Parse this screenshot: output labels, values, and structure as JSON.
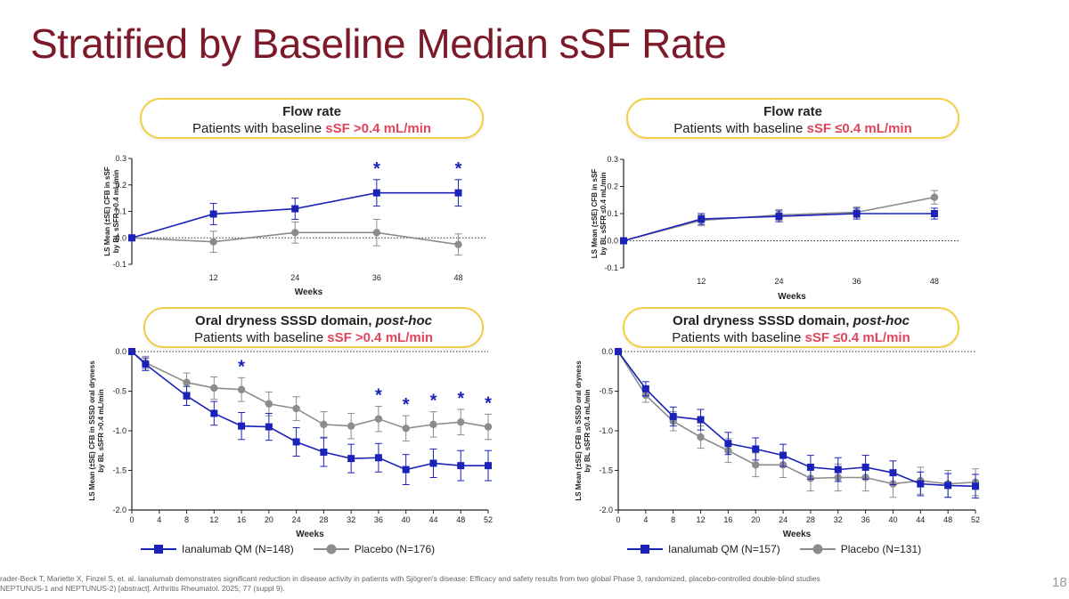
{
  "slide": {
    "title": "Stratified by Baseline Median sSF Rate",
    "page_number": "18",
    "footnote_line1": "rader-Beck T, Mariette X, Finzel S, et. al. Ianalumab demonstrates significant reduction in disease activity in patients with Sjögren's disease: Efficacy and safety results from two global Phase 3, randomized, placebo-controlled double-blind studies",
    "footnote_line2": "NEPTUNUS-1 and NEPTUNUS-2) [abstract]. Arthritis Rheumatol. 2025; 77 (suppl 9)."
  },
  "colors": {
    "title": "#7d1a2a",
    "ianalumab": "#1a22b8",
    "placebo": "#8c8c8c",
    "highlight": "#e0455b",
    "pill_border": "#f2cf45"
  },
  "pills": {
    "top_left": {
      "line1": "Flow rate",
      "prefix": "Patients with baseline ",
      "highlight": "sSF >0.4 mL/min"
    },
    "top_right": {
      "line1": "Flow rate",
      "prefix": "Patients with baseline ",
      "highlight": "sSF ≤0.4 mL/min"
    },
    "bottom_left": {
      "line1a": "Oral dryness SSSD domain, ",
      "line1b": "post-hoc",
      "prefix": "Patients with baseline ",
      "highlight": "sSF >0.4 mL/min"
    },
    "bottom_right": {
      "line1a": "Oral dryness SSSD domain, ",
      "line1b": "post-hoc",
      "prefix": "Patients with baseline ",
      "highlight": "sSF ≤0.4 mL/min"
    }
  },
  "legends": {
    "left": {
      "ianalumab": "Ianalumab QM (N=148)",
      "placebo": "Placebo (N=176)"
    },
    "right": {
      "ianalumab": "Ianalumab QM (N=157)",
      "placebo": "Placebo (N=131)"
    }
  },
  "chart_data": [
    {
      "type": "line",
      "id": "flow-high",
      "title": "Flow rate — Patients with baseline sSF >0.4 mL/min",
      "xlabel": "Weeks",
      "ylabel": [
        "LS Mean (±SE) CFB in sSF",
        "by BL sSFR >0.4 mL/min"
      ],
      "xlim": [
        0,
        52
      ],
      "ylim": [
        -0.1,
        0.3
      ],
      "xticks": [
        12,
        24,
        36,
        48
      ],
      "yticks": [
        -0.1,
        0.0,
        0.1,
        0.2,
        0.3
      ],
      "ytick_labels": [
        "-0.1",
        "0.0",
        "0.1",
        "0.2",
        "0.3"
      ],
      "baseline": 0,
      "series": [
        {
          "name": "Ianalumab QM",
          "x": [
            0,
            12,
            24,
            36,
            48
          ],
          "values": [
            0,
            0.09,
            0.11,
            0.17,
            0.17
          ],
          "err": [
            0,
            0.04,
            0.04,
            0.05,
            0.05
          ]
        },
        {
          "name": "Placebo",
          "x": [
            0,
            12,
            24,
            36,
            48
          ],
          "values": [
            0,
            -0.015,
            0.02,
            0.02,
            -0.025
          ],
          "err": [
            0,
            0.04,
            0.04,
            0.05,
            0.04
          ]
        }
      ],
      "stars": [
        36,
        48
      ],
      "star_label": "*"
    },
    {
      "type": "line",
      "id": "flow-low",
      "title": "Flow rate — Patients with baseline sSF ≤0.4 mL/min",
      "xlabel": "Weeks",
      "ylabel": [
        "LS Mean (±SE) CFB in sSF",
        "by BL sSFR ≤0.4 mL/min"
      ],
      "xlim": [
        0,
        52
      ],
      "ylim": [
        -0.1,
        0.3
      ],
      "xticks": [
        12,
        24,
        36,
        48
      ],
      "yticks": [
        -0.1,
        0.0,
        0.1,
        0.2,
        0.3
      ],
      "ytick_labels": [
        "-0.1",
        "0.0",
        "0.1",
        "0.2",
        "0.3"
      ],
      "baseline": 0,
      "series": [
        {
          "name": "Ianalumab QM",
          "x": [
            0,
            12,
            24,
            36,
            48
          ],
          "values": [
            0,
            0.08,
            0.09,
            0.1,
            0.1
          ],
          "err": [
            0,
            0.02,
            0.02,
            0.02,
            0.02
          ]
        },
        {
          "name": "Placebo",
          "x": [
            0,
            12,
            24,
            36,
            48
          ],
          "values": [
            0,
            0.075,
            0.095,
            0.105,
            0.16
          ],
          "err": [
            0,
            0.02,
            0.02,
            0.02,
            0.025
          ]
        }
      ],
      "stars": [],
      "star_label": "*"
    },
    {
      "type": "line",
      "id": "dryness-high",
      "title": "Oral dryness SSSD domain, post-hoc — Patients with baseline sSF >0.4 mL/min",
      "xlabel": "Weeks",
      "ylabel": [
        "LS Mean (±SE) CFB in SSSD oral dryness",
        "by BL sSFR >0.4 mL/min"
      ],
      "xlim": [
        0,
        52
      ],
      "ylim": [
        -2.0,
        0.0
      ],
      "xticks": [
        0,
        4,
        8,
        12,
        16,
        20,
        24,
        28,
        32,
        36,
        40,
        44,
        48,
        52
      ],
      "yticks": [
        -2.0,
        -1.5,
        -1.0,
        -0.5,
        0.0
      ],
      "ytick_labels": [
        "-2.0",
        "-1.5",
        "-1.0",
        "-0.5",
        "0.0"
      ],
      "baseline": 0,
      "series": [
        {
          "name": "Ianalumab QM",
          "x": [
            0,
            2,
            8,
            12,
            16,
            20,
            24,
            28,
            32,
            36,
            40,
            44,
            48,
            52
          ],
          "values": [
            0,
            -0.16,
            -0.56,
            -0.78,
            -0.94,
            -0.95,
            -1.14,
            -1.27,
            -1.35,
            -1.34,
            -1.49,
            -1.41,
            -1.44,
            -1.44
          ],
          "err": [
            0,
            0.08,
            0.12,
            0.15,
            0.17,
            0.17,
            0.18,
            0.18,
            0.18,
            0.18,
            0.19,
            0.18,
            0.19,
            0.19
          ]
        },
        {
          "name": "Placebo",
          "x": [
            0,
            2,
            8,
            12,
            16,
            20,
            24,
            28,
            32,
            36,
            40,
            44,
            48,
            52
          ],
          "values": [
            0,
            -0.14,
            -0.39,
            -0.46,
            -0.48,
            -0.66,
            -0.72,
            -0.92,
            -0.94,
            -0.85,
            -0.97,
            -0.92,
            -0.89,
            -0.95
          ],
          "err": [
            0,
            0.08,
            0.12,
            0.14,
            0.15,
            0.15,
            0.15,
            0.16,
            0.16,
            0.16,
            0.16,
            0.16,
            0.16,
            0.16
          ]
        }
      ],
      "stars": [
        16,
        36,
        40,
        44,
        48,
        52
      ],
      "star_label": "*"
    },
    {
      "type": "line",
      "id": "dryness-low",
      "title": "Oral dryness SSSD domain, post-hoc — Patients with baseline sSF ≤0.4 mL/min",
      "xlabel": "Weeks",
      "ylabel": [
        "LS Mean (±SE) CFB in SSSD oral dryness",
        "by BL sSFR ≤0.4 mL/min"
      ],
      "xlim": [
        0,
        52
      ],
      "ylim": [
        -2.0,
        0.0
      ],
      "xticks": [
        0,
        4,
        8,
        12,
        16,
        20,
        24,
        28,
        32,
        36,
        40,
        44,
        48,
        52
      ],
      "yticks": [
        -2.0,
        -1.5,
        -1.0,
        -0.5,
        0.0
      ],
      "ytick_labels": [
        "-2.0",
        "-1.5",
        "-1.0",
        "-0.5",
        "0.0"
      ],
      "baseline": 0,
      "series": [
        {
          "name": "Ianalumab QM",
          "x": [
            0,
            4,
            8,
            12,
            16,
            20,
            24,
            28,
            32,
            36,
            40,
            44,
            48,
            52
          ],
          "values": [
            0,
            -0.47,
            -0.82,
            -0.86,
            -1.16,
            -1.23,
            -1.31,
            -1.46,
            -1.49,
            -1.46,
            -1.53,
            -1.67,
            -1.69,
            -1.7
          ],
          "err": [
            0,
            0.09,
            0.12,
            0.13,
            0.14,
            0.14,
            0.14,
            0.15,
            0.15,
            0.15,
            0.15,
            0.15,
            0.15,
            0.15
          ]
        },
        {
          "name": "Placebo",
          "x": [
            0,
            4,
            8,
            12,
            16,
            20,
            24,
            28,
            32,
            36,
            40,
            44,
            48,
            52
          ],
          "values": [
            0,
            -0.55,
            -0.88,
            -1.08,
            -1.25,
            -1.43,
            -1.43,
            -1.6,
            -1.59,
            -1.59,
            -1.67,
            -1.63,
            -1.67,
            -1.65
          ],
          "err": [
            0,
            0.09,
            0.12,
            0.14,
            0.15,
            0.15,
            0.16,
            0.16,
            0.17,
            0.17,
            0.17,
            0.17,
            0.17,
            0.17
          ]
        }
      ],
      "stars": [],
      "star_label": "*"
    }
  ]
}
